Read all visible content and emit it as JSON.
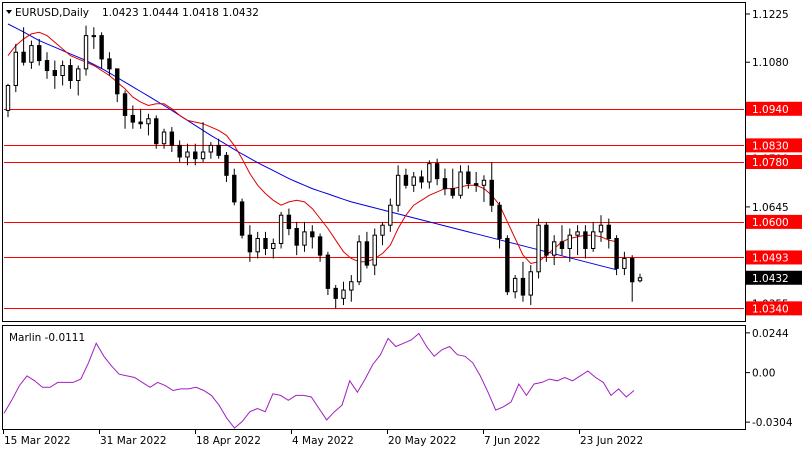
{
  "chart_data": [
    {
      "type": "candlestick",
      "title": "EURUSD,Daily",
      "ohlc_readout": "1.0423 1.0444 1.0418 1.0432",
      "y_ticks": [
        1.1225,
        1.108,
        1.0935,
        1.079,
        1.0645,
        1.05,
        1.0355
      ],
      "x_ticks": [
        "15 Mar 2022",
        "31 Mar 2022",
        "18 Apr 2022",
        "4 May 2022",
        "20 May 2022",
        "7 Jun 2022",
        "23 Jun 2022"
      ],
      "ylim": [
        1.0305,
        1.1255
      ],
      "grid": false,
      "legend": "none",
      "colors": {
        "up": "#ffffff",
        "down": "#000000",
        "fast_ma": "#e00000",
        "slow_ma": "#0000e0",
        "level": "#ff0000"
      },
      "levels": [
        {
          "value": 1.094,
          "label": "1.0940"
        },
        {
          "value": 1.083,
          "label": "1.0830"
        },
        {
          "value": 1.078,
          "label": "1.0780"
        },
        {
          "value": 1.06,
          "label": "1.0600"
        },
        {
          "value": 1.0493,
          "label": "1.0493"
        },
        {
          "value": 1.034,
          "label": "1.0340"
        }
      ],
      "current_price": {
        "value": 1.0432,
        "label": "1.0432"
      },
      "candles": [
        [
          1.0935,
          1.1015,
          1.0915,
          1.101
        ],
        [
          1.101,
          1.1135,
          1.099,
          1.111
        ],
        [
          1.111,
          1.1185,
          1.107,
          1.108
        ],
        [
          1.108,
          1.1145,
          1.106,
          1.113
        ],
        [
          1.113,
          1.115,
          1.107,
          1.1085
        ],
        [
          1.1085,
          1.111,
          1.103,
          1.1055
        ],
        [
          1.1055,
          1.1085,
          1.1,
          1.104
        ],
        [
          1.104,
          1.1085,
          1.101,
          1.107
        ],
        [
          1.107,
          1.109,
          1.1,
          1.1025
        ],
        [
          1.1025,
          1.107,
          1.098,
          1.106
        ],
        [
          1.106,
          1.119,
          1.104,
          1.116
        ],
        [
          1.116,
          1.1185,
          1.112,
          1.116
        ],
        [
          1.116,
          1.117,
          1.106,
          1.109
        ],
        [
          1.109,
          1.111,
          1.104,
          1.106
        ],
        [
          1.106,
          1.106,
          1.096,
          1.0985
        ],
        [
          1.0985,
          1.0995,
          1.088,
          1.092
        ],
        [
          1.092,
          1.095,
          1.088,
          1.09
        ],
        [
          1.09,
          1.094,
          1.088,
          1.0895
        ],
        [
          1.0895,
          1.0925,
          1.086,
          1.091
        ],
        [
          1.091,
          1.092,
          1.082,
          1.0835
        ],
        [
          1.0835,
          1.088,
          1.082,
          1.087
        ],
        [
          1.087,
          1.0885,
          1.081,
          1.083
        ],
        [
          1.083,
          1.0845,
          1.078,
          1.0795
        ],
        [
          1.0795,
          1.0835,
          1.077,
          1.081
        ],
        [
          1.081,
          1.0835,
          1.077,
          1.079
        ],
        [
          1.079,
          1.09,
          1.078,
          1.081
        ],
        [
          1.081,
          1.084,
          1.079,
          1.083
        ],
        [
          1.083,
          1.085,
          1.079,
          1.08
        ],
        [
          1.08,
          1.081,
          1.072,
          1.074
        ],
        [
          1.074,
          1.076,
          1.065,
          1.066
        ],
        [
          1.066,
          1.067,
          1.055,
          1.056
        ],
        [
          1.056,
          1.059,
          1.048,
          1.051
        ],
        [
          1.051,
          1.057,
          1.049,
          1.055
        ],
        [
          1.055,
          1.057,
          1.05,
          1.052
        ],
        [
          1.052,
          1.055,
          1.049,
          1.0535
        ],
        [
          1.0535,
          1.063,
          1.052,
          1.062
        ],
        [
          1.062,
          1.064,
          1.056,
          1.058
        ],
        [
          1.058,
          1.06,
          1.05,
          1.053
        ],
        [
          1.053,
          1.06,
          1.051,
          1.057
        ],
        [
          1.057,
          1.059,
          1.052,
          1.0555
        ],
        [
          1.0555,
          1.0565,
          1.048,
          1.05
        ],
        [
          1.05,
          1.051,
          1.038,
          1.04
        ],
        [
          1.04,
          1.041,
          1.034,
          1.037
        ],
        [
          1.037,
          1.042,
          1.035,
          1.0395
        ],
        [
          1.0395,
          1.044,
          1.036,
          1.042
        ],
        [
          1.042,
          1.056,
          1.041,
          1.054
        ],
        [
          1.054,
          1.057,
          1.046,
          1.047
        ],
        [
          1.047,
          1.058,
          1.044,
          1.056
        ],
        [
          1.056,
          1.06,
          1.053,
          1.059
        ],
        [
          1.059,
          1.067,
          1.057,
          1.065
        ],
        [
          1.065,
          1.077,
          1.063,
          1.074
        ],
        [
          1.074,
          1.076,
          1.07,
          1.071
        ],
        [
          1.071,
          1.075,
          1.069,
          1.0735
        ],
        [
          1.0735,
          1.0755,
          1.07,
          1.072
        ],
        [
          1.072,
          1.0785,
          1.07,
          1.0775
        ],
        [
          1.0775,
          1.079,
          1.071,
          1.073
        ],
        [
          1.073,
          1.076,
          1.068,
          1.07
        ],
        [
          1.07,
          1.076,
          1.067,
          1.068
        ],
        [
          1.068,
          1.077,
          1.067,
          1.075
        ],
        [
          1.075,
          1.077,
          1.07,
          1.0715
        ],
        [
          1.0715,
          1.075,
          1.069,
          1.071
        ],
        [
          1.071,
          1.074,
          1.066,
          1.0725
        ],
        [
          1.0725,
          1.078,
          1.063,
          1.065
        ],
        [
          1.065,
          1.066,
          1.052,
          1.055
        ],
        [
          1.055,
          1.056,
          1.038,
          1.039
        ],
        [
          1.039,
          1.044,
          1.037,
          1.043
        ],
        [
          1.043,
          1.048,
          1.036,
          1.038
        ],
        [
          1.038,
          1.047,
          1.035,
          1.045
        ],
        [
          1.045,
          1.061,
          1.043,
          1.059
        ],
        [
          1.059,
          1.06,
          1.048,
          1.05
        ],
        [
          1.05,
          1.056,
          1.047,
          1.054
        ],
        [
          1.054,
          1.059,
          1.05,
          1.052
        ],
        [
          1.052,
          1.058,
          1.048,
          1.056
        ],
        [
          1.056,
          1.059,
          1.05,
          1.057
        ],
        [
          1.057,
          1.059,
          1.049,
          1.052
        ],
        [
          1.052,
          1.06,
          1.051,
          1.057
        ],
        [
          1.057,
          1.062,
          1.054,
          1.059
        ],
        [
          1.059,
          1.061,
          1.052,
          1.055
        ],
        [
          1.055,
          1.056,
          1.044,
          1.046
        ],
        [
          1.046,
          1.051,
          1.044,
          1.049
        ],
        [
          1.049,
          1.05,
          1.036,
          1.042
        ],
        [
          1.0423,
          1.0444,
          1.0418,
          1.0432
        ]
      ],
      "slow_ma": [
        1.1195,
        1.1183,
        1.1171,
        1.1158,
        1.1145,
        1.1135,
        1.1125,
        1.1115,
        1.1105,
        1.1095,
        1.1085,
        1.1073,
        1.1061,
        1.1048,
        1.1034,
        1.102,
        1.1006,
        1.0992,
        1.0978,
        1.0964,
        1.095,
        1.0935,
        1.092,
        1.0905,
        1.089,
        1.0875,
        1.086,
        1.0846,
        1.0832,
        1.0818,
        1.0804,
        1.0791,
        1.0778,
        1.0766,
        1.0754,
        1.0742,
        1.073,
        1.072,
        1.071,
        1.07,
        1.0692,
        1.0684,
        1.0676,
        1.0668,
        1.066,
        1.0654,
        1.0648,
        1.0642,
        1.0636,
        1.063,
        1.0624,
        1.0618,
        1.0612,
        1.0606,
        1.06,
        1.0594,
        1.0588,
        1.0582,
        1.0576,
        1.057,
        1.0564,
        1.0558,
        1.0552,
        1.0546,
        1.054,
        1.0534,
        1.0528,
        1.0522,
        1.0516,
        1.051,
        1.0504,
        1.0498,
        1.0492,
        1.0486,
        1.048,
        1.0474,
        1.0468,
        1.0462,
        1.0456
      ],
      "fast_ma": [
        1.11,
        1.113,
        1.115,
        1.1165,
        1.117,
        1.116,
        1.114,
        1.112,
        1.11,
        1.109,
        1.108,
        1.107,
        1.1055,
        1.104,
        1.102,
        1.1,
        1.0975,
        1.096,
        1.095,
        1.0955,
        1.0955,
        1.094,
        1.092,
        1.0905,
        1.09,
        1.0895,
        1.0885,
        1.0875,
        1.086,
        1.083,
        1.079,
        1.0745,
        1.071,
        1.0685,
        1.0665,
        1.065,
        1.066,
        1.0665,
        1.066,
        1.064,
        1.061,
        1.058,
        1.0545,
        1.051,
        1.049,
        1.048,
        1.048,
        1.049,
        1.0505,
        1.053,
        1.058,
        1.062,
        1.065,
        1.0665,
        1.068,
        1.069,
        1.07,
        1.07,
        1.0705,
        1.071,
        1.071,
        1.07,
        1.068,
        1.065,
        1.06,
        1.055,
        1.05,
        1.0475,
        1.048,
        1.05,
        1.052,
        1.054,
        1.055,
        1.0555,
        1.056,
        1.056,
        1.0555,
        1.0545,
        1.054
      ]
    },
    {
      "type": "line",
      "title": "Marlin -0.0111",
      "y_ticks": [
        0.0244,
        0.0,
        -0.0304
      ],
      "y_tick_labels": [
        "0.0244",
        "0.00",
        "-0.0304"
      ],
      "ylim": [
        -0.034,
        0.028
      ],
      "grid": false,
      "colors": {
        "line": "#a020c0"
      },
      "series": [
        {
          "values": [
            -0.025,
            -0.017,
            -0.008,
            -0.002,
            -0.005,
            -0.009,
            -0.009,
            -0.006,
            -0.006,
            -0.006,
            -0.004,
            0.006,
            0.018,
            0.01,
            0.004,
            -0.001,
            -0.002,
            -0.003,
            -0.006,
            -0.009,
            -0.006,
            -0.008,
            -0.011,
            -0.01,
            -0.01,
            -0.009,
            -0.011,
            -0.014,
            -0.02,
            -0.028,
            -0.034,
            -0.03,
            -0.024,
            -0.022,
            -0.024,
            -0.013,
            -0.014,
            -0.017,
            -0.014,
            -0.014,
            -0.015,
            -0.022,
            -0.029,
            -0.024,
            -0.02,
            -0.005,
            -0.012,
            -0.004,
            0.005,
            0.011,
            0.021,
            0.016,
            0.018,
            0.02,
            0.024,
            0.016,
            0.01,
            0.014,
            0.016,
            0.011,
            0.01,
            0.006,
            -0.002,
            -0.012,
            -0.023,
            -0.021,
            -0.018,
            -0.007,
            -0.014,
            -0.007,
            -0.006,
            -0.004,
            -0.005,
            -0.003,
            -0.005,
            -0.002,
            0.001,
            -0.003,
            -0.006,
            -0.014,
            -0.01,
            -0.015,
            -0.011
          ]
        }
      ]
    }
  ]
}
